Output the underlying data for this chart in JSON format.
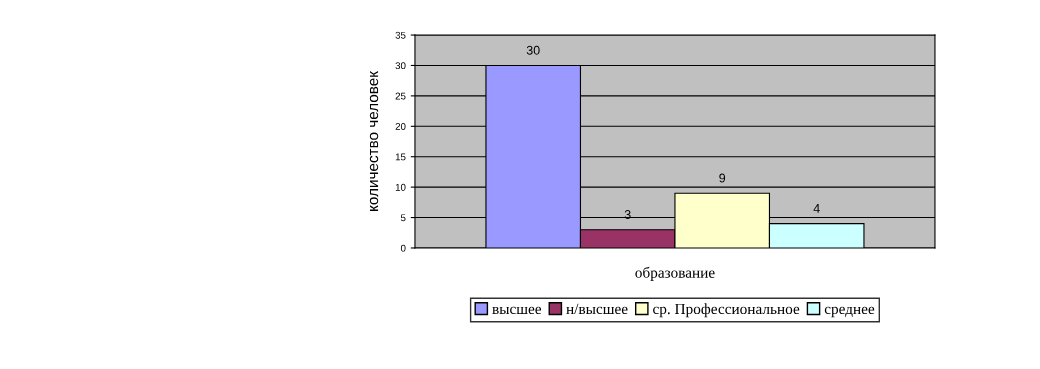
{
  "chart_data": {
    "type": "bar",
    "xlabel": "образование",
    "ylabel": "количество человек",
    "categories": [
      null
    ],
    "series": [
      {
        "name": "высшее",
        "color": "#9999ff",
        "values": [
          30
        ]
      },
      {
        "name": "н/высшее",
        "color": "#993366",
        "values": [
          3
        ]
      },
      {
        "name": "ср. Профессиональное",
        "color": "#ffffcc",
        "values": [
          9
        ]
      },
      {
        "name": "среднее",
        "color": "#ccffff",
        "values": [
          4
        ]
      }
    ],
    "ylim": [
      0,
      35
    ],
    "yticks": [
      0,
      5,
      10,
      15,
      20,
      25,
      30,
      35
    ],
    "grid": "y",
    "legend": "bottom",
    "data_labels": true
  }
}
